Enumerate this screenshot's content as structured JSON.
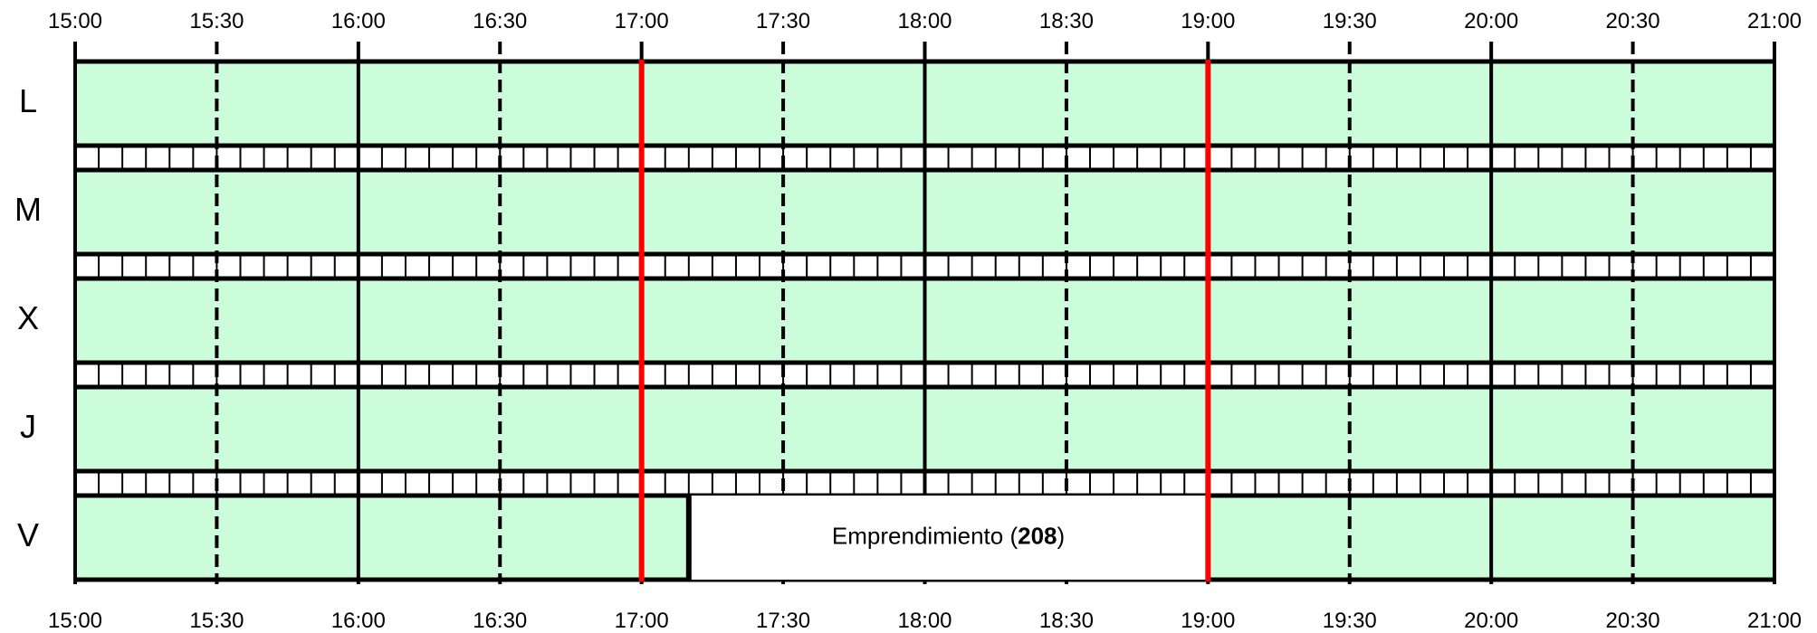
{
  "times": [
    "15:00",
    "15:30",
    "16:00",
    "16:30",
    "17:00",
    "17:30",
    "18:00",
    "18:30",
    "19:00",
    "19:30",
    "20:00",
    "20:30",
    "21:00"
  ],
  "days": [
    "L",
    "M",
    "X",
    "J",
    "V"
  ],
  "colors": {
    "free_slot": "#ccfddb",
    "event_slot": "#ffffff",
    "grid": "#000000",
    "highlight": "#ff0000"
  },
  "highlight_times": [
    "17:00",
    "19:00"
  ],
  "event": {
    "day": "V",
    "start": "17:10",
    "end": "19:00",
    "name": "Emprendimiento",
    "room": "208"
  }
}
